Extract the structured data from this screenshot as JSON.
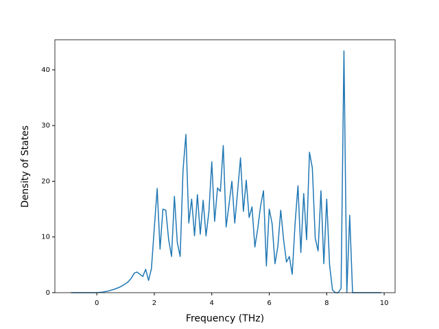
{
  "chart_data": {
    "type": "line",
    "x_label": "Frequency (THz)",
    "y_label": "Density of States",
    "x": [
      -0.9,
      -0.8,
      -0.7,
      -0.6,
      -0.5,
      -0.4,
      -0.3,
      -0.2,
      -0.1,
      0.0,
      0.1,
      0.2,
      0.3,
      0.4,
      0.5,
      0.6,
      0.7,
      0.8,
      0.9,
      1.0,
      1.1,
      1.2,
      1.3,
      1.4,
      1.5,
      1.6,
      1.7,
      1.8,
      1.9,
      2.0,
      2.1,
      2.2,
      2.3,
      2.4,
      2.5,
      2.6,
      2.7,
      2.8,
      2.9,
      3.0,
      3.1,
      3.2,
      3.3,
      3.4,
      3.5,
      3.6,
      3.7,
      3.8,
      3.9,
      4.0,
      4.1,
      4.2,
      4.3,
      4.4,
      4.5,
      4.6,
      4.7,
      4.8,
      4.9,
      5.0,
      5.1,
      5.2,
      5.3,
      5.4,
      5.5,
      5.6,
      5.7,
      5.8,
      5.9,
      6.0,
      6.1,
      6.2,
      6.3,
      6.4,
      6.5,
      6.6,
      6.7,
      6.8,
      6.9,
      7.0,
      7.1,
      7.2,
      7.3,
      7.4,
      7.5,
      7.6,
      7.7,
      7.8,
      7.9,
      8.0,
      8.1,
      8.2,
      8.3,
      8.4,
      8.5,
      8.6,
      8.7,
      8.8,
      8.9,
      9.0,
      9.1,
      9.2,
      9.3,
      9.4,
      9.5,
      9.6,
      9.7,
      9.8,
      9.9
    ],
    "series": [
      {
        "color": "#1f77b4",
        "values": [
          0,
          0,
          0,
          0,
          0,
          0,
          0,
          0,
          0,
          0,
          0.05,
          0.1,
          0.2,
          0.3,
          0.45,
          0.6,
          0.8,
          1.0,
          1.3,
          1.6,
          2.0,
          2.6,
          3.5,
          3.7,
          3.3,
          2.9,
          4.2,
          2.2,
          4.3,
          11.6,
          18.7,
          7.8,
          15.0,
          14.8,
          9.5,
          6.5,
          17.3,
          9.0,
          6.5,
          22.0,
          28.4,
          12.5,
          16.8,
          10.2,
          17.6,
          10.5,
          16.6,
          10.2,
          14.5,
          23.5,
          12.8,
          18.8,
          18.2,
          26.4,
          11.8,
          15.8,
          20.0,
          12.5,
          18.2,
          24.2,
          14.6,
          20.2,
          13.5,
          15.4,
          8.2,
          11.5,
          15.6,
          18.3,
          4.8,
          15.0,
          12.4,
          5.2,
          8.3,
          14.8,
          9.5,
          5.5,
          6.5,
          3.3,
          12.5,
          19.2,
          7.2,
          17.8,
          9.5,
          25.2,
          22.4,
          9.8,
          7.5,
          18.3,
          5.2,
          16.8,
          5.0,
          0.5,
          0,
          0,
          0.8,
          43.4,
          0,
          13.9,
          0,
          0,
          0,
          0,
          0,
          0,
          0,
          0,
          0,
          0,
          0
        ]
      }
    ],
    "xlim": [
      -1.46,
      10.38
    ],
    "ylim": [
      0,
      45.4
    ],
    "xticks": [
      0,
      2,
      4,
      6,
      8,
      10
    ],
    "yticks": [
      0,
      10,
      20,
      30,
      40
    ]
  }
}
